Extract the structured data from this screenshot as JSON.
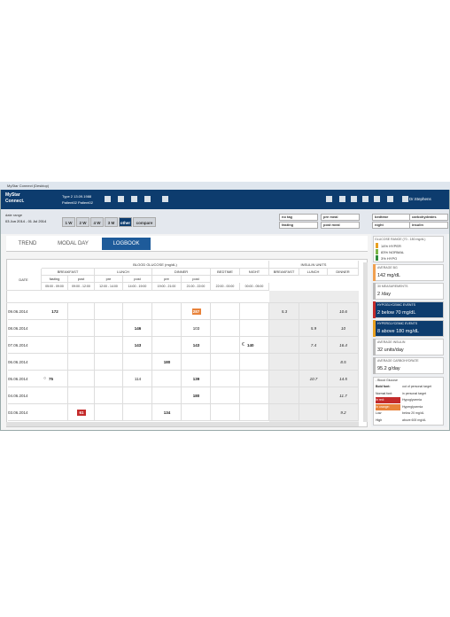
{
  "window": {
    "title": "MyStar Connect (Desktop)"
  },
  "header": {
    "logo": "MyStar Connect.",
    "patient_info": "Type 2  13.09.1988",
    "patient_name": "Patient02 Patient02",
    "user": "Dr.Stephens"
  },
  "filters": {
    "date_range_label": "date range",
    "date_range": "03 Jun 2014 - 01 Jul 2014",
    "periods": [
      "1 W",
      "2 W",
      "4 W",
      "3 M",
      "other",
      "compare"
    ],
    "selected_period": 4,
    "tags": [
      "no tag",
      "fasting",
      "pre meal",
      "post meal",
      "bedtime",
      "night",
      "carbohydrates",
      "insulin"
    ]
  },
  "tabs": {
    "items": [
      "TREND",
      "MODAL DAY",
      "LOGBOOK"
    ],
    "selected": 2
  },
  "table": {
    "groups": [
      "BLOOD GLUCOSE (mg/dL)",
      "INSULIN UNITS"
    ],
    "date_header": "DATE",
    "meals": [
      "BREAKFAST",
      "LUNCH",
      "DINNER",
      "BEDTIME",
      "NIGHT",
      "BREAKFAST",
      "LUNCH",
      "DINNER"
    ],
    "sub": [
      "fasting",
      "post",
      "pre",
      "post",
      "pre",
      "post"
    ],
    "times": [
      "05:00 - 09:00",
      "09:00 - 12:00",
      "12:00 - 14:00",
      "14:00 - 19:00",
      "19:00 - 21:00",
      "21:00 - 22:00",
      "22:00 - 00:00",
      "00:00 - 05:00"
    ],
    "rows": [
      {
        "date": "09.06.2014",
        "cells": [
          {
            "text": "172",
            "bold": true
          },
          null,
          null,
          null,
          null,
          {
            "text": "287",
            "bold": true,
            "color": "#e8823a"
          },
          null,
          null,
          {
            "text": "5.3"
          },
          null,
          {
            "text": "10.6"
          }
        ]
      },
      {
        "date": "08.06.2014",
        "cells": [
          null,
          null,
          null,
          {
            "text": "146",
            "bold": true
          },
          null,
          {
            "text": "103"
          },
          null,
          null,
          null,
          {
            "text": "5.9"
          },
          {
            "text": "10"
          }
        ]
      },
      {
        "date": "07.06.2014",
        "cells": [
          null,
          null,
          null,
          {
            "text": "143",
            "bold": true
          },
          null,
          {
            "text": "143",
            "bold": true
          },
          null,
          {
            "text": "140",
            "bold": true,
            "icon": "€"
          },
          null,
          {
            "text": "7.4"
          },
          {
            "text": "16.4"
          }
        ]
      },
      {
        "date": "06.06.2014",
        "cells": [
          null,
          null,
          null,
          null,
          {
            "text": "180",
            "bold": true
          },
          null,
          null,
          null,
          null,
          null,
          {
            "text": "8.5"
          }
        ]
      },
      {
        "date": "05.06.2014",
        "cells": [
          {
            "text": "75",
            "bold": true,
            "icon": "○"
          },
          null,
          null,
          {
            "text": "114"
          },
          null,
          {
            "text": "139",
            "bold": true
          },
          null,
          null,
          null,
          {
            "text": "10.7"
          },
          {
            "text": "14.5"
          }
        ]
      },
      {
        "date": "04.06.2014",
        "cells": [
          null,
          null,
          null,
          null,
          null,
          {
            "text": "180",
            "bold": true
          },
          null,
          null,
          null,
          null,
          {
            "text": "11.7"
          }
        ]
      },
      {
        "date": "03.06.2014",
        "cells": [
          null,
          {
            "text": "61",
            "bold": true,
            "color": "#c42b2b"
          },
          null,
          null,
          {
            "text": "134",
            "bold": true
          },
          null,
          null,
          null,
          null,
          null,
          {
            "text": "9.2"
          }
        ]
      }
    ]
  },
  "sidebar": {
    "glucose_range": {
      "title": "GLUCOSE RANGE (70 - 180 mg/dL)",
      "items": [
        {
          "label": "14% HYPER",
          "color": "#e8a020"
        },
        {
          "label": "83% NORMAL",
          "color": "#7ab648"
        },
        {
          "label": "3% HYPO",
          "color": "#2e8b3a"
        }
      ]
    },
    "cards": [
      {
        "title": "AVERAGE BG",
        "value": "142 mg/dL",
        "accent": "#f0a050",
        "dark": false
      },
      {
        "title": "30 MEASUREMENTS",
        "value": "2 /day",
        "accent": "#bbbbbb",
        "dark": false
      },
      {
        "title": "HYPOGLYCEMIC EVENTS",
        "value": "2 below 70 mg/dL",
        "accent": "#c42b2b",
        "dark": true
      },
      {
        "title": "HYPERGLYCEMIC EVENTS",
        "value": "8 above 180 mg/dL",
        "accent": "#e8a020",
        "dark": true
      },
      {
        "title": "AVERAGE INSULIN",
        "value": "32 units/day",
        "accent": "#bbbbbb",
        "dark": false
      },
      {
        "title": "AVERAGE CARBOHYDRATE",
        "value": "95.2 g/day",
        "accent": "#bbbbbb",
        "dark": false
      }
    ],
    "legend": {
      "title": "- Blood Glucose",
      "rows": [
        {
          "key": "Bold font:",
          "text": "out of personal target"
        },
        {
          "key": "Normal font:",
          "text": "in personal target"
        },
        {
          "key": "In red:",
          "text": "Hypoglycemia",
          "color": "#c42b2b"
        },
        {
          "key": "In orange:",
          "text": "Hyperglycemia",
          "color": "#e8823a"
        },
        {
          "key": "Low",
          "text": "below 20 mg/dL"
        },
        {
          "key": "High",
          "text": "above 600 mg/dL"
        }
      ]
    }
  }
}
